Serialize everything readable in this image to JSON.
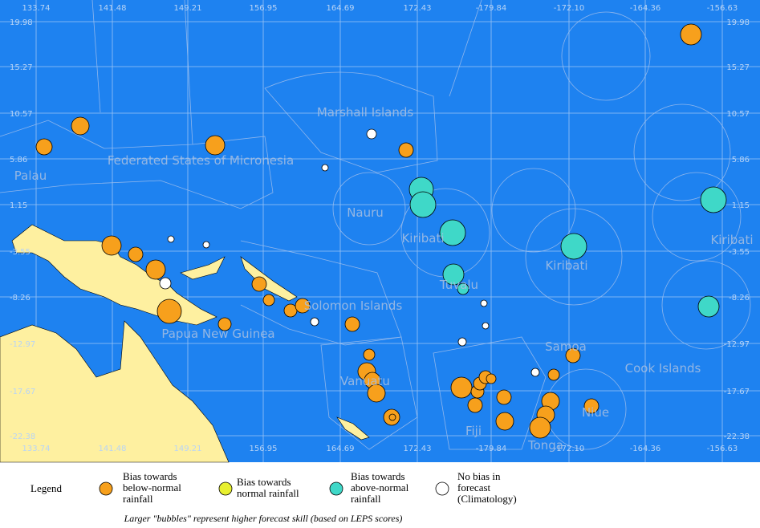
{
  "map": {
    "lon_labels": [
      "133.74",
      "141.48",
      "149.21",
      "156.95",
      "164.69",
      "172.43",
      "-179.84",
      "-172.10",
      "-164.36",
      "-156.63"
    ],
    "lat_labels": [
      "19.98",
      "15.27",
      "10.57",
      "5.86",
      "1.15",
      "-3.55",
      "-8.26",
      "-12.97",
      "-17.67",
      "-22.38"
    ],
    "regions": [
      "Marshall Islands",
      "Federated States of Micronesia",
      "Palau",
      "Nauru",
      "Kiribati",
      "Kiribati",
      "Kiribati",
      "Tuvalu",
      "Solomon Islands",
      "Papua New Guinea",
      "Vanuatu",
      "Fiji",
      "Tonga",
      "Samoa",
      "Niue",
      "Cook Islands"
    ]
  },
  "legend": {
    "title": "Legend",
    "items": [
      {
        "lines": [
          "Bias towards",
          "below-normal",
          "rainfall"
        ]
      },
      {
        "lines": [
          "Bias towards",
          "normal rainfall"
        ]
      },
      {
        "lines": [
          "Bias towards",
          "above-normal",
          "rainfall"
        ]
      },
      {
        "lines": [
          "No bias in",
          "forecast",
          "(Climatology)"
        ]
      }
    ],
    "note": "Larger \"bubbles\" represent higher forecast skill (based on LEPS scores)"
  }
}
